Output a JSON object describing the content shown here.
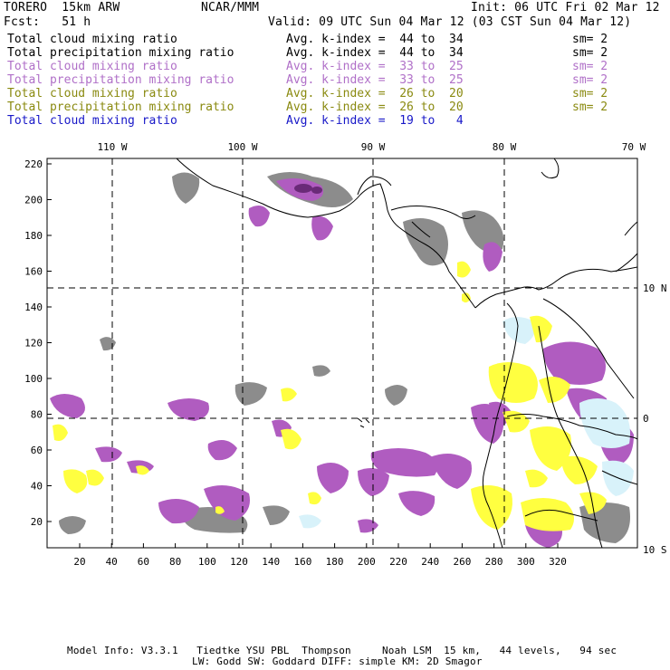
{
  "header": {
    "model": "TORERO  15km ARW",
    "center": "NCAR/MMM",
    "init": "Init: 06 UTC Fri 02 Mar 12",
    "fcst": "Fcst:   51 h",
    "valid": "Valid: 09 UTC Sun 04 Mar 12 (03 CST Sun 04 Mar 12)"
  },
  "legend": [
    {
      "field": "Total cloud mixing ratio",
      "kindex": "Avg. k-index =  44 to  34",
      "sm": "sm= 2",
      "color": "#000000"
    },
    {
      "field": "Total precipitation mixing ratio",
      "kindex": "Avg. k-index =  44 to  34",
      "sm": "sm= 2",
      "color": "#000000"
    },
    {
      "field": "Total cloud mixing ratio",
      "kindex": "Avg. k-index =  33 to  25",
      "sm": "sm= 2",
      "color": "#b070c8"
    },
    {
      "field": "Total precipitation mixing ratio",
      "kindex": "Avg. k-index =  33 to  25",
      "sm": "sm= 2",
      "color": "#b070c8"
    },
    {
      "field": "Total cloud mixing ratio",
      "kindex": "Avg. k-index =  26 to  20",
      "sm": "sm= 2",
      "color": "#8a8a10"
    },
    {
      "field": "Total precipitation mixing ratio",
      "kindex": "Avg. k-index =  26 to  20",
      "sm": "sm= 2",
      "color": "#8a8a10"
    },
    {
      "field": "Total cloud mixing ratio",
      "kindex": "Avg. k-index =  19 to   4",
      "sm": "",
      "color": "#1818c8"
    }
  ],
  "map": {
    "lon_labels": [
      "110 W",
      "100 W",
      "90 W",
      "80 W",
      "70 W"
    ],
    "lat_labels": [
      "10 N",
      "0",
      "10 S"
    ],
    "y_ticks": [
      "220",
      "200",
      "180",
      "160",
      "140",
      "120",
      "100",
      "80",
      "60",
      "40",
      "20"
    ],
    "x_ticks": [
      "20",
      "40",
      "60",
      "80",
      "100",
      "120",
      "140",
      "160",
      "180",
      "200",
      "220",
      "240",
      "260",
      "280",
      "300",
      "320"
    ],
    "colors": {
      "gray": "#8c8c8c",
      "purple": "#b05cc0",
      "dark_purple": "#6a2a78",
      "yellow": "#ffff40",
      "light_blue": "#d8f2fa"
    }
  },
  "footer": {
    "line1": "Model Info: V3.3.1   Tiedtke YSU PBL  Thompson     Noah LSM  15 km,   44 levels,   94 sec",
    "line2": "LW: Godd SW: Goddard DIFF: simple KM: 2D Smagor"
  }
}
